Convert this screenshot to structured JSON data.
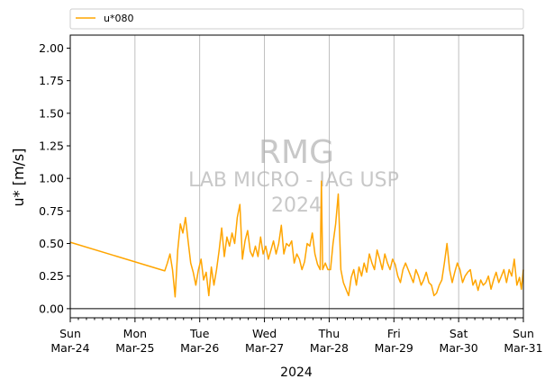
{
  "chart_data": {
    "type": "line",
    "title": "",
    "xlabel": "2024",
    "ylabel": "u* [m/s]",
    "ylim": [
      -0.07,
      2.1
    ],
    "xlim": [
      0,
      7
    ],
    "yticks": [
      0.0,
      0.25,
      0.5,
      0.75,
      1.0,
      1.25,
      1.5,
      1.75,
      2.0
    ],
    "ytick_labels": [
      "0.00",
      "0.25",
      "0.50",
      "0.75",
      "1.00",
      "1.25",
      "1.50",
      "1.75",
      "2.00"
    ],
    "xticks": [
      {
        "day": "Sun",
        "date": "Mar-24"
      },
      {
        "day": "Mon",
        "date": "Mar-25"
      },
      {
        "day": "Tue",
        "date": "Mar-26"
      },
      {
        "day": "Wed",
        "date": "Mar-27"
      },
      {
        "day": "Thu",
        "date": "Mar-28"
      },
      {
        "day": "Fri",
        "date": "Mar-29"
      },
      {
        "day": "Sat",
        "date": "Mar-30"
      },
      {
        "day": "Sun",
        "date": "Mar-31"
      }
    ],
    "x_units": "days since 2024-03-24 00:00",
    "grid": "vertical gridlines at major ticks",
    "zero_line": true,
    "legend_placement": "top, above plot",
    "watermark": [
      "RMG",
      "LAB MICRO - IAG USP",
      "2024"
    ],
    "series": [
      {
        "name": "u*080",
        "color": "#FFA500",
        "x": [
          0.0,
          1.46,
          1.5,
          1.54,
          1.58,
          1.62,
          1.66,
          1.7,
          1.74,
          1.78,
          1.82,
          1.86,
          1.9,
          1.94,
          1.98,
          2.02,
          2.06,
          2.1,
          2.14,
          2.18,
          2.22,
          2.26,
          2.3,
          2.34,
          2.38,
          2.42,
          2.46,
          2.5,
          2.54,
          2.58,
          2.62,
          2.66,
          2.7,
          2.74,
          2.78,
          2.82,
          2.86,
          2.9,
          2.94,
          2.98,
          3.02,
          3.06,
          3.1,
          3.14,
          3.18,
          3.22,
          3.26,
          3.3,
          3.34,
          3.38,
          3.42,
          3.46,
          3.5,
          3.54,
          3.58,
          3.62,
          3.66,
          3.7,
          3.74,
          3.78,
          3.82,
          3.86,
          3.88,
          3.9,
          3.94,
          3.98,
          4.02,
          4.06,
          4.1,
          4.14,
          4.18,
          4.22,
          4.26,
          4.3,
          4.34,
          4.38,
          4.42,
          4.46,
          4.5,
          4.54,
          4.58,
          4.62,
          4.66,
          4.7,
          4.74,
          4.78,
          4.82,
          4.86,
          4.9,
          4.94,
          4.98,
          5.02,
          5.06,
          5.1,
          5.14,
          5.18,
          5.22,
          5.26,
          5.3,
          5.34,
          5.38,
          5.42,
          5.46,
          5.5,
          5.54,
          5.58,
          5.62,
          5.66,
          5.7,
          5.74,
          5.78,
          5.82,
          5.86,
          5.9,
          5.94,
          5.98,
          6.02,
          6.06,
          6.1,
          6.14,
          6.18,
          6.22,
          6.26,
          6.3,
          6.34,
          6.38,
          6.42,
          6.46,
          6.5,
          6.54,
          6.58,
          6.62,
          6.66,
          6.7,
          6.74,
          6.78,
          6.82,
          6.86,
          6.9,
          6.94,
          6.97,
          7.0
        ],
        "y": [
          0.51,
          0.29,
          0.35,
          0.42,
          0.3,
          0.09,
          0.45,
          0.65,
          0.58,
          0.7,
          0.52,
          0.35,
          0.28,
          0.18,
          0.3,
          0.38,
          0.22,
          0.28,
          0.1,
          0.32,
          0.18,
          0.3,
          0.45,
          0.62,
          0.4,
          0.55,
          0.48,
          0.58,
          0.5,
          0.7,
          0.8,
          0.38,
          0.52,
          0.6,
          0.44,
          0.4,
          0.48,
          0.4,
          0.55,
          0.42,
          0.48,
          0.38,
          0.45,
          0.52,
          0.42,
          0.5,
          0.64,
          0.42,
          0.5,
          0.48,
          0.52,
          0.35,
          0.42,
          0.38,
          0.3,
          0.36,
          0.5,
          0.48,
          0.58,
          0.42,
          0.34,
          0.3,
          0.98,
          0.3,
          0.35,
          0.3,
          0.3,
          0.5,
          0.65,
          0.88,
          0.3,
          0.2,
          0.15,
          0.1,
          0.24,
          0.3,
          0.18,
          0.32,
          0.25,
          0.35,
          0.28,
          0.42,
          0.35,
          0.3,
          0.45,
          0.38,
          0.3,
          0.42,
          0.35,
          0.3,
          0.38,
          0.34,
          0.25,
          0.2,
          0.3,
          0.35,
          0.3,
          0.25,
          0.2,
          0.3,
          0.25,
          0.18,
          0.22,
          0.28,
          0.2,
          0.18,
          0.1,
          0.12,
          0.18,
          0.22,
          0.35,
          0.5,
          0.3,
          0.2,
          0.28,
          0.35,
          0.3,
          0.2,
          0.25,
          0.28,
          0.3,
          0.18,
          0.22,
          0.14,
          0.22,
          0.18,
          0.2,
          0.25,
          0.15,
          0.22,
          0.28,
          0.2,
          0.25,
          0.3,
          0.2,
          0.3,
          0.25,
          0.38,
          0.18,
          0.24,
          0.15,
          0.3
        ]
      }
    ]
  }
}
